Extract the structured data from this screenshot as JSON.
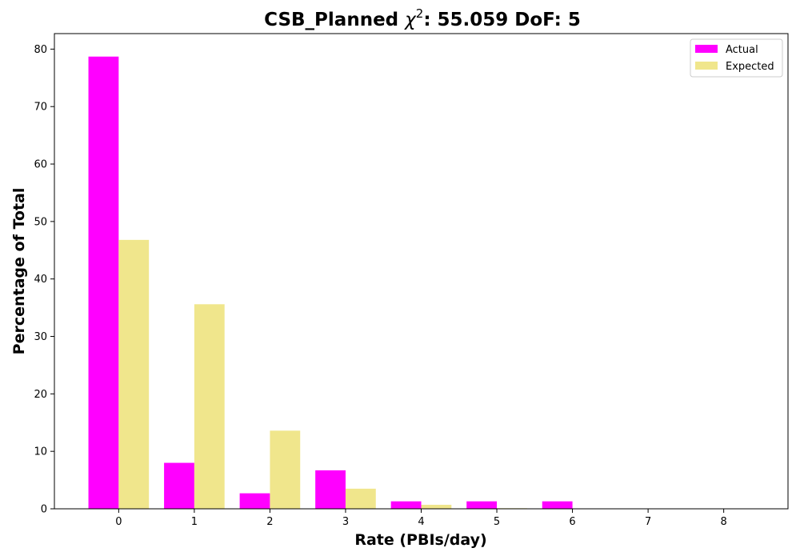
{
  "chart_data": {
    "type": "bar",
    "title_main": "CSB_Planned ",
    "title_symbol": "χ",
    "title_superscript": "2",
    "title_rest": ": 55.059 DoF: 5",
    "xlabel": "Rate (PBIs/day)",
    "ylabel": "Percentage of Total",
    "categories": [
      "0",
      "1",
      "2",
      "3",
      "4",
      "5",
      "6",
      "7",
      "8"
    ],
    "x": [
      0,
      1,
      2,
      3,
      4,
      5,
      6,
      7,
      8
    ],
    "xlim": [
      -0.85,
      8.85
    ],
    "ylim": [
      0,
      82.7
    ],
    "yticks": [
      0,
      10,
      20,
      30,
      40,
      50,
      60,
      70,
      80
    ],
    "grid": false,
    "legend_position": "top-right",
    "series": [
      {
        "name": "Actual",
        "color": "#ff00ff",
        "values": [
          78.7,
          8.0,
          2.7,
          6.7,
          1.3,
          1.3,
          1.3,
          0,
          0
        ]
      },
      {
        "name": "Expected",
        "color": "#f0e68c",
        "values": [
          46.8,
          35.6,
          13.6,
          3.5,
          0.7,
          0.1,
          0.0,
          0.0,
          0.0
        ]
      }
    ]
  }
}
